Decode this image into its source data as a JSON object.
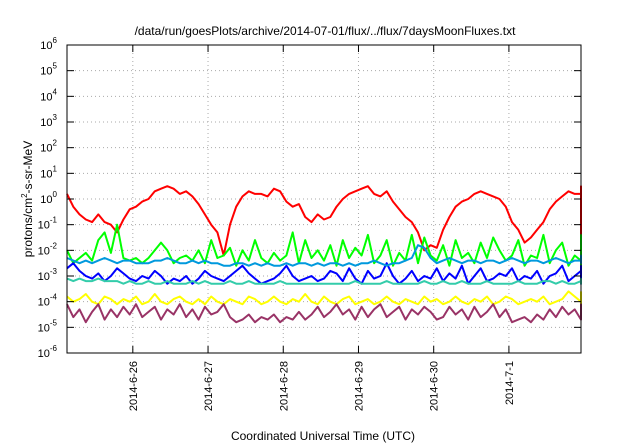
{
  "chart_data": {
    "type": "line",
    "title": "/data/run/goesPlots/archive/2014-07-01/flux/../flux/7daysMoonFluxes.txt",
    "xlabel": "Coordinated Universal Time (UTC)",
    "ylabel": "protons/cm2-s-sr-MeV",
    "ylabel_parts": {
      "base": "protons/cm",
      "sup": "2",
      "rest": "-s-sr-MeV"
    },
    "yscale": "log",
    "ylim_exponents": [
      -6,
      6
    ],
    "y_tick_base": "10",
    "y_tick_exponents": [
      "-6",
      "-5",
      "-4",
      "-3",
      "-2",
      "-1",
      "0",
      "1",
      "2",
      "3",
      "4",
      "5",
      "6"
    ],
    "x_range_days": [
      "2014-06-25T03:00",
      "2014-07-01T23:00"
    ],
    "x_ticks": [
      "2014-6-26",
      "2014-6-27",
      "2014-6-28",
      "2014-6-29",
      "2014-6-30",
      "2014-7-1"
    ],
    "grid": true,
    "series": [
      {
        "color": "#ff0000",
        "x_start": "2014-06-25T03:00",
        "step_hours": 2,
        "log10_values": [
          0.2,
          -0.3,
          -0.6,
          -0.8,
          -0.9,
          -0.6,
          -0.9,
          -1.0,
          -1.3,
          -0.8,
          -0.4,
          -0.3,
          -0.1,
          0.0,
          0.3,
          0.4,
          0.5,
          0.4,
          0.2,
          0.3,
          0.1,
          -0.2,
          -0.6,
          -1.0,
          -1.3,
          -2.2,
          -1.0,
          -0.3,
          0.1,
          0.3,
          0.2,
          0.2,
          0.1,
          0.4,
          0.3,
          -0.1,
          -0.3,
          -0.2,
          -0.7,
          -0.9,
          -0.6,
          -0.8,
          -0.7,
          -0.3,
          0.0,
          0.2,
          0.3,
          0.4,
          0.5,
          0.2,
          0.1,
          0.3,
          -0.1,
          -0.4,
          -0.7,
          -0.9,
          -1.3,
          -2.0,
          -1.8,
          -1.9,
          -1.2,
          -0.7,
          -0.3,
          -0.1,
          0.0,
          0.2,
          0.3,
          0.2,
          0.1,
          0.0,
          -0.3,
          -0.9,
          -1.2,
          -1.7,
          -1.5,
          -1.2,
          -0.9,
          -0.4,
          -0.1,
          0.1,
          0.3,
          0.2,
          0.2,
          0.4,
          0.5,
          -0.1,
          -0.4,
          -0.9,
          -1.4,
          -1.0,
          -1.6,
          -1.3,
          -1.4,
          -0.6,
          -0.2,
          0.0,
          0.2,
          0.4,
          0.3,
          0.2,
          0.1,
          -0.2,
          -0.4,
          -0.6,
          -0.8,
          -1.3,
          -1.6,
          -1.0,
          -1.1,
          -1.2,
          -1.2,
          -0.5,
          -0.2,
          -0.1,
          0.0,
          0.2,
          0.1,
          0.1,
          0.3,
          0.0,
          -0.2,
          -0.5,
          -0.7,
          -1.0,
          -1.1,
          -1.2,
          -1.6,
          -1.2,
          -1.4,
          -0.9,
          -0.4,
          -0.2,
          -0.1,
          0.0,
          0.0,
          0.1,
          0.2,
          -0.1
        ]
      },
      {
        "color": "#00ff00",
        "x_start": "2014-06-25T03:00",
        "step_hours": 2,
        "log10_values": [
          -2.0,
          -2.5,
          -2.3,
          -2.1,
          -2.4,
          -1.6,
          -1.3,
          -2.1,
          -1.0,
          -2.3,
          -2.4,
          -2.3,
          -2.5,
          -2.3,
          -2.0,
          -1.7,
          -2.0,
          -2.5,
          -2.3,
          -2.2,
          -2.4,
          -2.0,
          -2.5,
          -1.6,
          -2.3,
          -2.2,
          -1.9,
          -2.6,
          -2.0,
          -2.4,
          -1.6,
          -2.3,
          -2.5,
          -2.1,
          -2.4,
          -2.2,
          -1.3,
          -2.5,
          -1.6,
          -2.3,
          -2.0,
          -2.4,
          -1.8,
          -2.6,
          -1.6,
          -2.3,
          -1.9,
          -2.2,
          -1.4,
          -2.5,
          -2.2,
          -1.6,
          -2.6,
          -2.1,
          -2.4,
          -1.4,
          -2.5,
          -1.5,
          -2.2,
          -2.4,
          -1.8,
          -2.6,
          -1.6,
          -2.3,
          -2.1,
          -2.5,
          -1.7,
          -2.3,
          -1.5,
          -2.0,
          -2.4,
          -2.2,
          -1.6,
          -2.6,
          -2.2,
          -2.3,
          -1.4,
          -2.5,
          -2.0,
          -1.7,
          -2.6,
          -2.2,
          -2.4,
          -1.6,
          -2.3,
          -1.8,
          -2.5,
          -2.0,
          -1.5,
          -2.4,
          -1.8,
          -1.4,
          -2.5,
          -2.3,
          -1.6,
          -2.4,
          -2.0,
          -1.4,
          -2.6,
          -2.2,
          -2.4,
          -1.7,
          -2.3,
          -2.5,
          -1.6,
          -2.1,
          -2.4,
          -1.5,
          -2.3,
          -2.0,
          -2.6,
          -1.7,
          -2.2,
          -2.3,
          -1.9,
          -1.8,
          -2.5,
          -1.6,
          -2.3,
          -2.5,
          -1.7,
          -2.2,
          -2.5,
          -1.4,
          -2.3,
          -2.4,
          -1.5,
          -2.3,
          -2.5,
          -2.0,
          -1.6,
          -2.4,
          -2.5,
          -1.7,
          -2.3,
          -2.0
        ]
      },
      {
        "color": "#0000ff",
        "x_start": "2014-06-25T03:00",
        "step_hours": 2,
        "log10_values": [
          -2.7,
          -2.5,
          -2.8,
          -3.0,
          -3.1,
          -2.9,
          -3.2,
          -3.0,
          -2.7,
          -2.9,
          -3.1,
          -3.2,
          -3.0,
          -3.1,
          -2.8,
          -3.0,
          -3.3,
          -3.1,
          -3.2,
          -3.0,
          -3.3,
          -3.1,
          -2.8,
          -3.0,
          -3.1,
          -3.2,
          -3.0,
          -2.8,
          -2.6,
          -2.9,
          -3.1,
          -3.3,
          -3.2,
          -3.1,
          -2.9,
          -2.6,
          -3.0,
          -3.2,
          -3.1,
          -3.0,
          -3.2,
          -3.1,
          -2.8,
          -2.9,
          -3.2,
          -2.7,
          -3.1,
          -3.3,
          -2.8,
          -3.1,
          -3.0,
          -2.5,
          -3.0,
          -3.3,
          -3.1,
          -2.8,
          -3.2,
          -3.0,
          -3.1,
          -2.7,
          -3.2,
          -2.9,
          -3.1,
          -2.6,
          -3.3,
          -3.0,
          -2.7,
          -3.2,
          -3.1,
          -2.9,
          -3.0,
          -2.7,
          -3.2,
          -3.0,
          -3.1,
          -2.8,
          -3.3,
          -3.0,
          -2.9,
          -2.6,
          -3.2,
          -3.0,
          -2.8,
          -3.2,
          -2.9,
          -3.0,
          -2.7,
          -3.2,
          -3.3,
          -2.9,
          -3.1,
          -2.8,
          -3.0,
          -3.2,
          -2.9,
          -2.7,
          -3.1,
          -3.2,
          -2.9,
          -2.6,
          -3.2,
          -3.0,
          -3.1,
          -2.8,
          -3.2,
          -2.9,
          -2.7,
          -3.1,
          -3.0,
          -2.9,
          -3.1,
          -2.8,
          -3.2,
          -2.9,
          -3.0,
          -2.8,
          -3.1,
          -2.7,
          -3.2,
          -3.0,
          -2.8,
          -3.1,
          -2.9,
          -2.7,
          -3.0,
          -3.2,
          -2.8,
          -3.1,
          -2.7,
          -3.0,
          -3.2,
          -2.8,
          -2.9,
          -3.1,
          -2.7,
          -3.0
        ]
      },
      {
        "color": "#0099dd",
        "x_start": "2014-06-25T03:00",
        "step_hours": 2,
        "log10_values": [
          -2.3,
          -2.4,
          -2.5,
          -2.4,
          -2.5,
          -2.4,
          -2.3,
          -2.4,
          -2.5,
          -2.4,
          -2.4,
          -2.5,
          -2.5,
          -2.5,
          -2.4,
          -2.4,
          -2.3,
          -2.4,
          -2.5,
          -2.5,
          -2.4,
          -2.5,
          -2.4,
          -2.5,
          -2.5,
          -2.6,
          -2.6,
          -2.5,
          -2.5,
          -2.6,
          -2.5,
          -2.6,
          -2.5,
          -2.6,
          -2.6,
          -2.5,
          -2.6,
          -2.5,
          -2.5,
          -2.6,
          -2.5,
          -2.6,
          -2.5,
          -2.5,
          -2.6,
          -2.5,
          -2.6,
          -2.5,
          -2.5,
          -2.4,
          -2.5,
          -2.6,
          -2.5,
          -2.5,
          -2.4,
          -2.3,
          -1.8,
          -1.9,
          -2.3,
          -2.5,
          -2.4,
          -2.3,
          -2.4,
          -2.5,
          -2.4,
          -2.4,
          -2.5,
          -2.4,
          -2.4,
          -2.5,
          -2.4,
          -2.3,
          -2.4,
          -2.5,
          -2.4,
          -2.4,
          -2.5,
          -2.4,
          -2.3,
          -2.4,
          -2.5,
          -2.4,
          -2.4,
          -2.5,
          -2.5,
          -2.4,
          -2.3,
          -2.4,
          -2.5,
          -2.5,
          -2.4,
          -2.5,
          -2.4,
          -2.4,
          -2.5,
          -2.4,
          -2.3,
          -2.4,
          -2.5,
          -2.5,
          -2.5,
          -2.4,
          -2.5,
          -2.4,
          -2.4,
          -2.5,
          -2.4,
          -2.5,
          -2.4,
          -2.4,
          -2.5,
          -2.4,
          -2.4,
          -2.3,
          -2.4,
          -2.4,
          -2.5,
          -2.4,
          -2.3,
          -2.4,
          -2.3,
          -2.2,
          -2.4,
          -2.3,
          -2.4,
          -2.3,
          -2.2,
          -2.4,
          -2.5,
          -2.3,
          -2.4,
          -2.2,
          -2.3,
          -2.4,
          -2.3,
          -2.2
        ]
      },
      {
        "color": "#33ccaa",
        "x_start": "2014-06-25T03:00",
        "step_hours": 2,
        "log10_values": [
          -3.1,
          -3.2,
          -3.1,
          -3.2,
          -3.2,
          -3.1,
          -3.2,
          -3.2,
          -3.2,
          -3.3,
          -3.2,
          -3.3,
          -3.3,
          -3.2,
          -3.3,
          -3.3,
          -3.2,
          -3.3,
          -3.3,
          -3.3,
          -3.2,
          -3.3,
          -3.2,
          -3.3,
          -3.3,
          -3.3,
          -3.2,
          -3.3,
          -3.3,
          -3.2,
          -3.3,
          -3.3,
          -3.3,
          -3.3,
          -3.2,
          -3.3,
          -3.3,
          -3.3,
          -3.3,
          -3.3,
          -3.3,
          -3.3,
          -3.3,
          -3.3,
          -3.3,
          -3.3,
          -3.2,
          -3.3,
          -3.3,
          -3.3,
          -3.3,
          -3.2,
          -3.3,
          -3.3,
          -3.3,
          -3.3,
          -3.3,
          -3.2,
          -3.3,
          -3.3,
          -3.2,
          -3.3,
          -3.3,
          -3.2,
          -3.3,
          -3.3,
          -3.3,
          -3.2,
          -3.3,
          -3.3,
          -3.3,
          -3.3,
          -3.2,
          -3.3,
          -3.3,
          -3.3,
          -3.2,
          -3.2,
          -3.3,
          -3.2,
          -3.3,
          -3.3,
          -3.2,
          -3.3,
          -3.2,
          -3.3,
          -3.3,
          -3.2,
          -3.2,
          -3.3,
          -3.2,
          -3.3,
          -3.3,
          -3.2,
          -3.2,
          -3.3,
          -3.2,
          -3.2,
          -3.3,
          -3.2,
          -3.2,
          -3.3,
          -3.2,
          -3.2,
          -3.2,
          -3.3,
          -3.2,
          -3.2,
          -3.2,
          -3.3,
          -3.2,
          -3.2,
          -3.2,
          -3.2,
          -3.3,
          -3.2,
          -3.2,
          -3.2,
          -3.2,
          -3.3,
          -3.2,
          -3.2,
          -3.2,
          -3.2,
          -3.2,
          -3.2,
          -3.2,
          -3.2,
          -3.2,
          -3.2,
          -3.1,
          -3.2,
          -3.2,
          -3.1,
          -3.2,
          -3.2
        ]
      },
      {
        "color": "#ffff00",
        "x_start": "2014-06-25T03:00",
        "step_hours": 2,
        "log10_values": [
          -3.8,
          -4.0,
          -3.9,
          -3.7,
          -4.0,
          -4.1,
          -3.8,
          -3.9,
          -4.1,
          -3.9,
          -4.0,
          -3.8,
          -4.1,
          -4.0,
          -3.7,
          -4.0,
          -4.1,
          -3.9,
          -3.8,
          -4.0,
          -4.1,
          -3.9,
          -4.1,
          -3.8,
          -4.0,
          -4.1,
          -3.9,
          -4.0,
          -4.1,
          -3.8,
          -3.9,
          -4.1,
          -4.0,
          -3.8,
          -4.0,
          -4.1,
          -3.9,
          -4.0,
          -3.7,
          -4.0,
          -4.1,
          -3.8,
          -4.0,
          -4.1,
          -3.9,
          -3.8,
          -4.1,
          -4.0,
          -3.9,
          -4.1,
          -4.0,
          -3.8,
          -4.0,
          -4.1,
          -3.9,
          -4.0,
          -4.1,
          -3.8,
          -4.0,
          -3.9,
          -4.1,
          -4.0,
          -3.8,
          -4.0,
          -4.1,
          -3.9,
          -4.0,
          -3.8,
          -4.1,
          -4.0,
          -3.8,
          -3.9,
          -4.1,
          -4.0,
          -3.9,
          -4.0,
          -3.8,
          -4.1,
          -4.0,
          -3.9,
          -3.6,
          -3.8,
          -4.0,
          -4.1,
          -3.9,
          -4.0,
          -3.8,
          -4.0,
          -4.1,
          -3.9,
          -3.8,
          -4.0,
          -4.1,
          -3.9,
          -4.0,
          -3.8,
          -4.1,
          -4.0,
          -3.9,
          -3.8,
          -4.0,
          -4.1,
          -3.9,
          -4.0,
          -3.8,
          -4.1,
          -4.0,
          -3.9,
          -3.9,
          -3.8,
          -4.0,
          -4.1,
          -3.9,
          -4.0,
          -3.8,
          -4.0,
          -4.1,
          -3.9,
          -3.8,
          -4.0,
          -3.9,
          -4.1,
          -4.0,
          -3.8,
          -3.9,
          -4.0,
          -3.8,
          -3.9,
          -4.1,
          -3.9,
          -3.8,
          -4.0,
          -3.9,
          -3.7,
          -3.8,
          -3.6
        ]
      },
      {
        "color": "#993366",
        "x_start": "2014-06-25T03:00",
        "step_hours": 2,
        "log10_values": [
          -4.1,
          -4.6,
          -4.3,
          -4.8,
          -4.4,
          -4.1,
          -4.7,
          -4.3,
          -4.6,
          -4.2,
          -4.5,
          -4.1,
          -4.6,
          -4.4,
          -4.2,
          -4.7,
          -4.3,
          -4.5,
          -4.1,
          -4.6,
          -4.3,
          -4.7,
          -4.2,
          -4.5,
          -4.4,
          -4.1,
          -4.6,
          -4.8,
          -4.7,
          -4.5,
          -4.8,
          -4.6,
          -4.7,
          -4.5,
          -4.8,
          -4.6,
          -4.7,
          -4.4,
          -4.7,
          -4.5,
          -4.2,
          -4.6,
          -4.4,
          -4.1,
          -4.5,
          -4.3,
          -4.7,
          -4.2,
          -4.6,
          -4.3,
          -4.1,
          -4.6,
          -4.4,
          -4.2,
          -4.7,
          -4.3,
          -4.5,
          -4.2,
          -4.4,
          -4.7,
          -4.6,
          -4.2,
          -4.5,
          -4.3,
          -4.7,
          -4.2,
          -4.6,
          -4.4,
          -4.1,
          -4.6,
          -4.3,
          -4.8,
          -4.7,
          -4.6,
          -4.8,
          -4.5,
          -4.7,
          -4.3,
          -4.6,
          -4.2,
          -4.5,
          -4.3,
          -4.7,
          -4.1,
          -4.5,
          -4.4,
          -4.2,
          -4.6,
          -4.4,
          -4.1,
          -4.5,
          -4.3,
          -4.7,
          -4.2,
          -4.6,
          -4.3,
          -4.5,
          -4.2,
          -4.7,
          -4.4,
          -4.2,
          -4.6,
          -4.3,
          -4.5,
          -4.1,
          -4.6,
          -4.3,
          -4.7,
          -4.2,
          -4.5,
          -4.4,
          -4.2,
          -4.7,
          -4.3,
          -4.5,
          -4.1,
          -4.6,
          -4.4,
          -4.2,
          -4.7,
          -4.3,
          -4.5,
          -4.2,
          -4.6,
          -4.4,
          -4.1,
          -4.5,
          -4.3,
          -4.7,
          -4.2,
          -4.6,
          -4.3,
          -4.5,
          -4.4,
          -4.2,
          -4.3
        ]
      }
    ]
  }
}
